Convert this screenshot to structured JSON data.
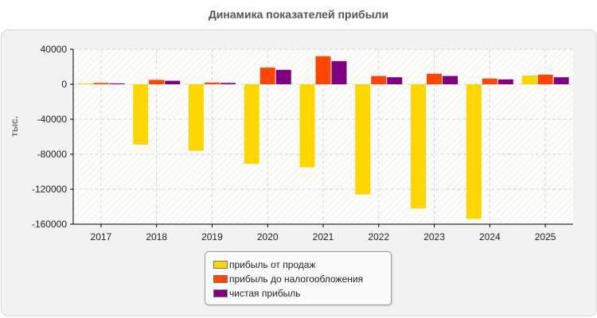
{
  "chart_data": {
    "type": "bar",
    "title": "Динамика показателей прибыли",
    "ylabel": "тыс.",
    "xlabel": "",
    "categories": [
      "2017",
      "2018",
      "2019",
      "2020",
      "2021",
      "2022",
      "2023",
      "2024",
      "2025"
    ],
    "ylim": [
      -160000,
      40000
    ],
    "yticks": [
      40000,
      0,
      -40000,
      -80000,
      -120000,
      -160000
    ],
    "grid": true,
    "legend_position": "bottom",
    "series": [
      {
        "name": "прибыль от продаж",
        "color": "#ffd700",
        "values": [
          1000,
          -69000,
          -76000,
          -91000,
          -95000,
          -126000,
          -142000,
          -154000,
          10000
        ]
      },
      {
        "name": "прибыль до налогообложения",
        "color": "#ff4500",
        "values": [
          1500,
          5000,
          2000,
          19000,
          32000,
          9500,
          12000,
          6500,
          11000
        ]
      },
      {
        "name": "чистая прибыль",
        "color": "#800080",
        "values": [
          1000,
          4000,
          1500,
          16500,
          26500,
          8000,
          9500,
          5500,
          8000
        ]
      }
    ]
  }
}
